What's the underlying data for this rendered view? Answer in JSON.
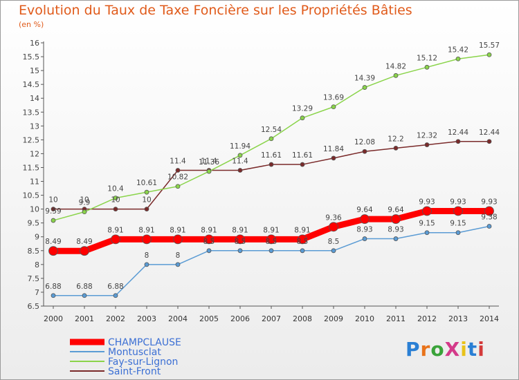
{
  "title": "Evolution du Taux de Taxe Foncière sur les Propriétés Bâties",
  "subtitle": "(en %)",
  "logo": {
    "text": "ProXiti",
    "colors": [
      "#2a7fd4",
      "#e8731a",
      "#3aa33a",
      "#d43a8a",
      "#e8c21a",
      "#2a7fd4",
      "#d43a3a"
    ]
  },
  "chart_data": {
    "type": "line",
    "x": [
      "2000",
      "2001",
      "2002",
      "2003",
      "2004",
      "2005",
      "2006",
      "2007",
      "2008",
      "2009",
      "2010",
      "2011",
      "2012",
      "2013",
      "2014"
    ],
    "ylim": [
      6.5,
      16
    ],
    "yticks": [
      "6.5",
      "7",
      "7.5",
      "8",
      "8.5",
      "9",
      "9.5",
      "10",
      "10.5",
      "11",
      "11.5",
      "12",
      "12.5",
      "13",
      "13.5",
      "14",
      "14.5",
      "15",
      "15.5",
      "16"
    ],
    "grid": false,
    "legend_position": "bottom-left",
    "series": [
      {
        "name": "CHAMPCLAUSE",
        "color": "#ff0000",
        "values": [
          8.49,
          8.49,
          8.91,
          8.91,
          8.91,
          8.91,
          8.91,
          8.91,
          8.91,
          9.36,
          9.64,
          9.64,
          9.93,
          9.93,
          9.93
        ],
        "labels": [
          "8.49",
          "8.49",
          "8.91",
          "8.91",
          "8.91",
          "8.91",
          "8.91",
          "8.91",
          "8.91",
          "9.36",
          "9.64",
          "9.64",
          "9.93",
          "9.93",
          "9.93"
        ]
      },
      {
        "name": "Montusclat",
        "color": "#5a9bd4",
        "values": [
          6.88,
          6.88,
          6.88,
          8,
          8,
          8.5,
          8.5,
          8.5,
          8.5,
          8.5,
          8.93,
          8.93,
          9.15,
          9.15,
          9.38
        ],
        "labels": [
          "6.88",
          "6.88",
          "6.88",
          "8",
          "8",
          "8.5",
          "8.5",
          "8.5",
          "8.5",
          "8.5",
          "8.93",
          "8.93",
          "9.15",
          "9.15",
          "9.38"
        ]
      },
      {
        "name": "Fay-sur-Lignon",
        "color": "#8ad44a",
        "values": [
          9.59,
          9.9,
          10.4,
          10.61,
          10.82,
          11.36,
          11.94,
          12.54,
          13.29,
          13.69,
          14.39,
          14.82,
          15.12,
          15.42,
          15.57
        ],
        "labels": [
          "9.59",
          "9.9",
          "10.4",
          "10.61",
          "10.82",
          "11.36",
          "11.94",
          "12.54",
          "13.29",
          "13.69",
          "14.39",
          "14.82",
          "15.12",
          "15.42",
          "15.57"
        ]
      },
      {
        "name": "Saint-Front",
        "color": "#7a2a2a",
        "values": [
          10,
          10,
          10,
          10,
          11.4,
          11.4,
          11.4,
          11.61,
          11.61,
          11.84,
          12.08,
          12.2,
          12.32,
          12.44,
          12.44
        ],
        "labels": [
          "10",
          "10",
          "10",
          "10",
          "11.4",
          "11.4",
          "11.4",
          "11.61",
          "11.61",
          "11.84",
          "12.08",
          "12.2",
          "12.32",
          "12.44",
          "12.44"
        ]
      }
    ]
  }
}
